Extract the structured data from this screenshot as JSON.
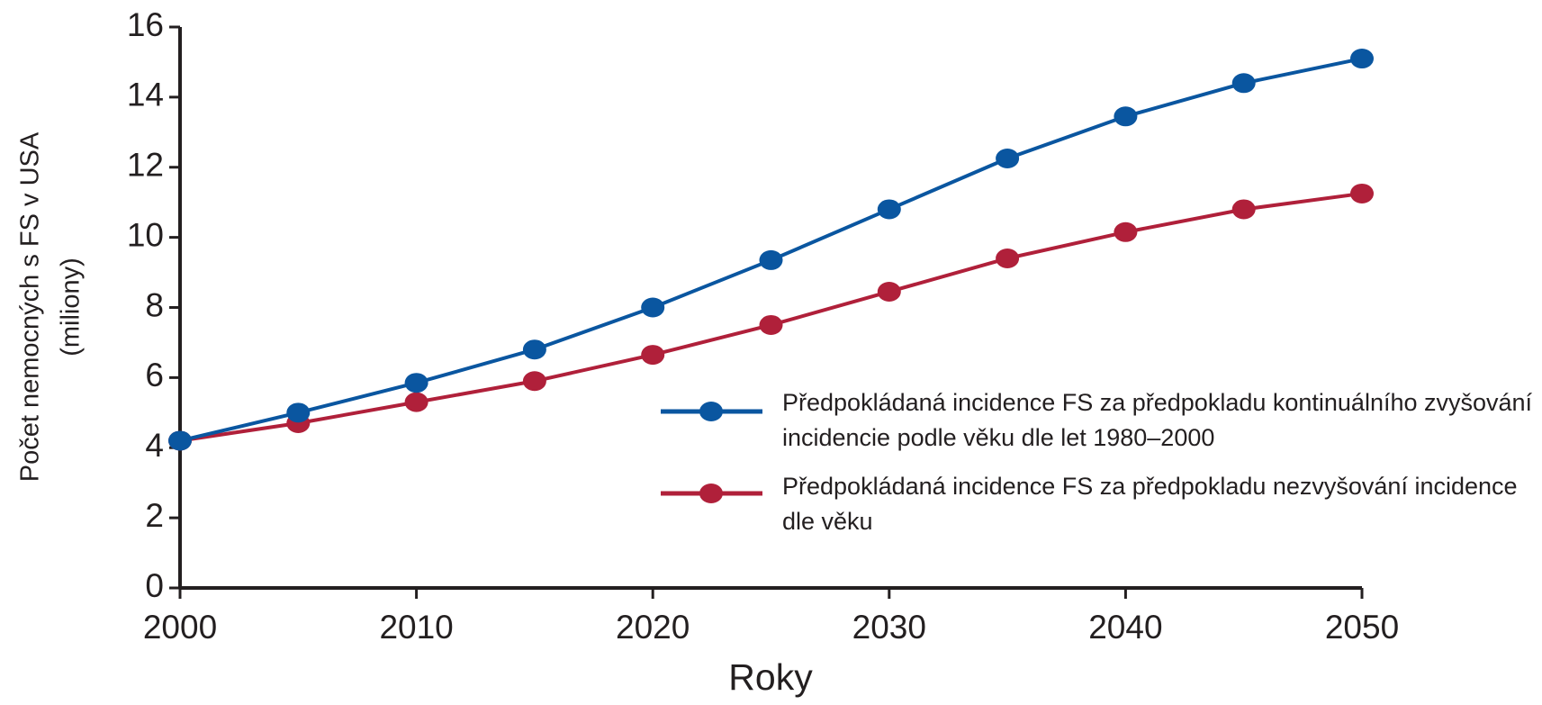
{
  "chart_data": {
    "type": "line",
    "xlabel": "Roky",
    "ylabel": [
      "Počet nemocných s FS v USA",
      "(miliony)"
    ],
    "x": [
      2000,
      2005,
      2010,
      2015,
      2020,
      2025,
      2030,
      2035,
      2040,
      2045,
      2050
    ],
    "xlim": [
      2000,
      2050
    ],
    "xticks": [
      2000,
      2010,
      2020,
      2030,
      2040,
      2050
    ],
    "ylim": [
      0,
      16
    ],
    "yticks": [
      0,
      2,
      4,
      6,
      8,
      10,
      12,
      14,
      16
    ],
    "series": [
      {
        "name": "Předpokládaná incidence FS za předpokladu kontinuálního zvyšování incidencie podle věku  dle let 1980–2000",
        "color": "#0a56a0",
        "values": [
          4.2,
          5.0,
          5.85,
          6.8,
          8.0,
          9.35,
          10.8,
          12.25,
          13.45,
          14.4,
          15.1
        ]
      },
      {
        "name": "Předpokládaná incidence FS za předpokladu  nezvyšování incidence dle věku",
        "color": "#b0203a",
        "values": [
          4.2,
          4.7,
          5.3,
          5.9,
          6.65,
          7.5,
          8.45,
          9.4,
          10.15,
          10.8,
          11.25
        ]
      }
    ]
  }
}
